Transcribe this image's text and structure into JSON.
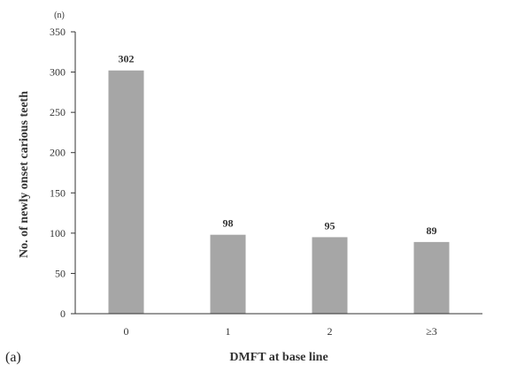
{
  "panel_label": "(a)",
  "chart_data": {
    "type": "bar",
    "categories": [
      "0",
      "1",
      "2",
      "≥3"
    ],
    "values": [
      302,
      98,
      95,
      89
    ],
    "data_labels": [
      "302",
      "98",
      "95",
      "89"
    ],
    "xlabel": "DMFT at base line",
    "ylabel": "No. of newly onset carious teeth",
    "y_unit": "(n)",
    "ylim": [
      0,
      350
    ],
    "yticks": [
      0,
      50,
      100,
      150,
      200,
      250,
      300,
      350
    ],
    "grid": false,
    "legend": "none",
    "bar_color": "#a6a6a6"
  }
}
